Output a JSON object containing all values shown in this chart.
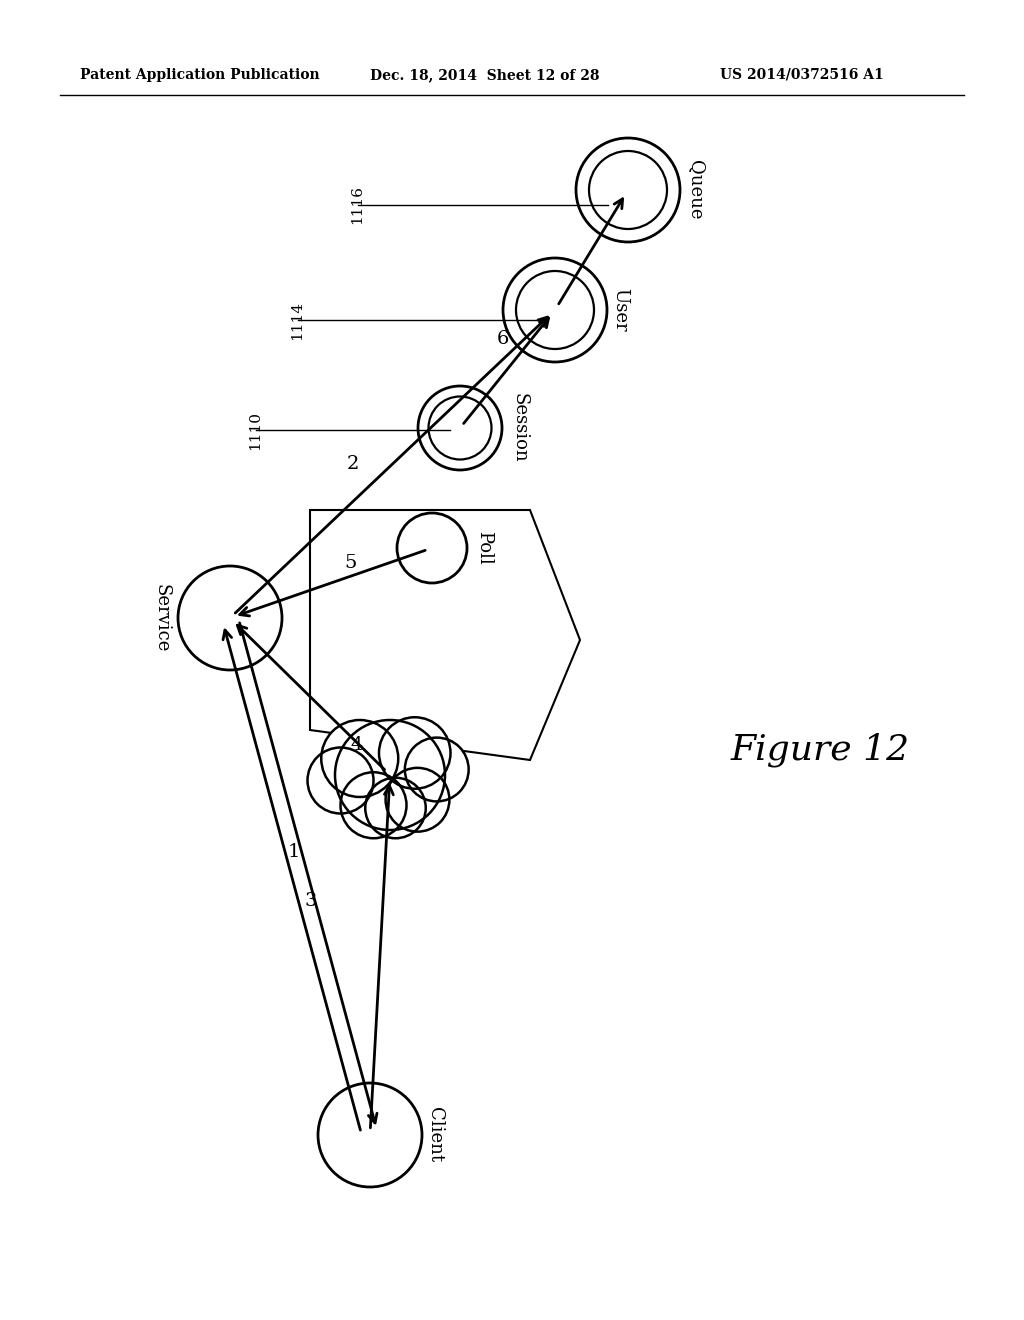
{
  "title_left": "Patent Application Publication",
  "title_mid": "Dec. 18, 2014  Sheet 12 of 28",
  "title_right": "US 2014/0372516 A1",
  "figure_label": "Figure 12",
  "background_color": "#ffffff"
}
